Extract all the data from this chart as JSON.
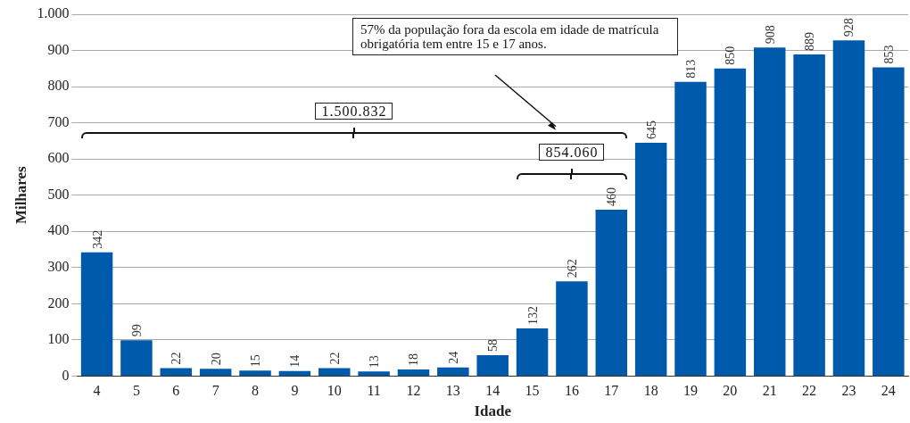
{
  "chart_data": {
    "type": "bar",
    "xlabel": "Idade",
    "ylabel": "Milhares",
    "categories": [
      "4",
      "5",
      "6",
      "7",
      "8",
      "9",
      "10",
      "11",
      "12",
      "13",
      "14",
      "15",
      "16",
      "17",
      "18",
      "19",
      "20",
      "21",
      "22",
      "23",
      "24"
    ],
    "values": [
      342,
      99,
      22,
      20,
      15,
      14,
      22,
      13,
      18,
      24,
      58,
      132,
      262,
      460,
      645,
      813,
      850,
      908,
      889,
      928,
      853
    ],
    "color": "#005aab",
    "data_labels": true,
    "grid": "y",
    "legend": false,
    "ylim": [
      0,
      1000
    ],
    "yticks": [
      0,
      100,
      200,
      300,
      400,
      500,
      600,
      700,
      800,
      900,
      {
        "value": 1000,
        "label": "1.000"
      }
    ],
    "annotations": [
      "57% da população fora da escola em idade de matrícula obrigatória tem entre 15 e 17 anos.",
      "1.500.832",
      "854.060"
    ]
  }
}
